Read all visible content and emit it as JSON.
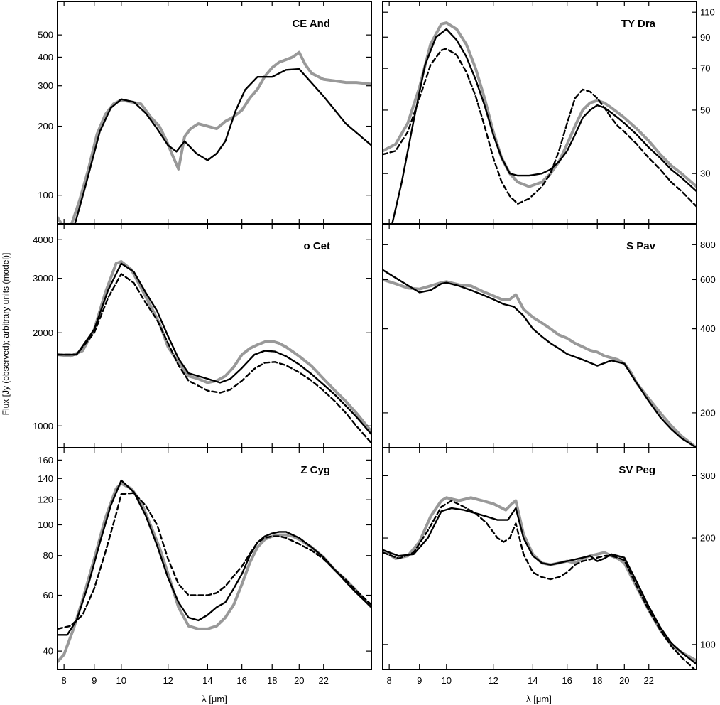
{
  "axis": {
    "ylabel": "Flux [Jy (observed); arbitrary units (model)]",
    "xlabel": "λ [μm]",
    "xscale": "log",
    "xlim": [
      7.8,
      26.5
    ],
    "xticks": [
      8,
      9,
      10,
      12,
      14,
      16,
      18,
      20,
      22
    ],
    "xtick_labels": [
      "8",
      "9",
      "10",
      "12",
      "14",
      "16",
      "18",
      "20",
      "22"
    ]
  },
  "series_styles": {
    "observed": {
      "color": "#999999"
    },
    "model_1": {
      "color": "#000000",
      "dash": "solid"
    },
    "model_2": {
      "color": "#000000",
      "dash": "dashed"
    }
  },
  "chart_data": [
    {
      "type": "line",
      "title": "CE And",
      "yscale": "log",
      "ylim": [
        75,
        700
      ],
      "ytick_labels": [
        "100",
        "200",
        "300",
        "400",
        "500"
      ],
      "yticks": [
        100,
        200,
        300,
        400,
        500
      ],
      "observed": {
        "x": [
          7.8,
          8.0,
          8.2,
          8.5,
          8.8,
          9.1,
          9.4,
          9.7,
          10.0,
          10.4,
          10.8,
          11.2,
          11.6,
          11.9,
          12.2,
          12.5,
          12.8,
          13.1,
          13.5,
          14.0,
          14.5,
          15.0,
          15.5,
          16.0,
          16.5,
          17.0,
          17.5,
          18.0,
          18.5,
          19.0,
          19.5,
          20.0,
          20.5,
          21.0,
          22.0,
          23.0,
          24.0,
          25.0,
          26.5
        ],
        "y": [
          80,
          72,
          72,
          95,
          130,
          185,
          225,
          250,
          260,
          255,
          250,
          220,
          200,
          175,
          150,
          130,
          180,
          195,
          205,
          200,
          195,
          210,
          220,
          235,
          265,
          290,
          330,
          360,
          380,
          390,
          400,
          420,
          370,
          340,
          320,
          315,
          310,
          310,
          305
        ]
      },
      "model_1": {
        "x": [
          8.35,
          8.7,
          9.2,
          9.6,
          10.0,
          10.5,
          11.0,
          11.5,
          12.0,
          12.4,
          12.8,
          13.4,
          14.0,
          14.5,
          15.0,
          15.6,
          16.2,
          17.0,
          18.0,
          19.0,
          20.0,
          22.0,
          24.0,
          26.5
        ],
        "y": [
          75,
          110,
          190,
          240,
          262,
          255,
          228,
          195,
          165,
          155,
          172,
          152,
          142,
          152,
          172,
          232,
          288,
          328,
          328,
          352,
          355,
          270,
          205,
          165
        ]
      }
    },
    {
      "type": "line",
      "title": "TY Dra",
      "yscale": "log",
      "ylim": [
        20,
        120
      ],
      "ytick_labels": [
        "30",
        "50",
        "70",
        "90",
        "110"
      ],
      "yticks": [
        30,
        50,
        70,
        90,
        110
      ],
      "observed": {
        "x": [
          7.8,
          8.2,
          8.6,
          9.0,
          9.4,
          9.8,
          10.0,
          10.4,
          10.8,
          11.2,
          11.6,
          12.0,
          12.4,
          12.8,
          13.2,
          13.8,
          14.5,
          15.0,
          15.5,
          16.0,
          16.5,
          17.0,
          17.5,
          18.0,
          18.5,
          19.0,
          19.5,
          20.0,
          21.0,
          22.0,
          23.0,
          24.0,
          25.0,
          26.5
        ],
        "y": [
          36,
          38,
          45,
          60,
          85,
          100,
          101,
          96,
          85,
          70,
          55,
          42,
          34,
          30,
          28,
          27,
          28,
          30,
          33,
          38,
          44,
          50,
          53,
          54,
          53,
          51,
          49,
          47,
          43,
          39,
          35,
          32,
          30,
          27
        ]
      },
      "model_1": {
        "x": [
          8.0,
          8.4,
          8.8,
          9.2,
          9.6,
          10.0,
          10.4,
          10.8,
          11.2,
          11.6,
          12.0,
          12.4,
          12.8,
          13.2,
          13.8,
          14.5,
          15.0,
          15.5,
          16.0,
          16.5,
          17.0,
          17.5,
          18.0,
          18.5,
          19.0,
          19.5,
          20.0,
          21.0,
          22.0,
          23.0,
          24.0,
          25.0,
          26.5
        ],
        "y": [
          18,
          28,
          46,
          72,
          90,
          96,
          88,
          77,
          64,
          52,
          41,
          34,
          30,
          29.5,
          29.5,
          30,
          31,
          33,
          36,
          41,
          47,
          50,
          52,
          51,
          49,
          47,
          45,
          41,
          37,
          34,
          31,
          29,
          26
        ]
      },
      "model_2": {
        "x": [
          7.8,
          8.2,
          8.6,
          9.0,
          9.4,
          9.8,
          10.0,
          10.4,
          10.8,
          11.2,
          11.6,
          12.0,
          12.4,
          12.8,
          13.2,
          13.8,
          14.5,
          15.0,
          15.5,
          16.0,
          16.5,
          17.0,
          17.5,
          18.0,
          18.5,
          19.0,
          19.5,
          20.0,
          21.0,
          22.0,
          23.0,
          24.0,
          25.0,
          26.5
        ],
        "y": [
          35,
          36,
          42,
          55,
          72,
          81,
          82,
          78,
          68,
          56,
          44,
          34,
          28,
          25,
          23.5,
          24.5,
          27,
          30,
          36,
          45,
          55,
          59,
          58,
          55,
          51,
          47,
          44,
          42,
          38,
          34,
          31,
          28,
          26,
          23
        ]
      }
    },
    {
      "type": "line",
      "title": "o Cet",
      "yscale": "log",
      "ylim": [
        850,
        4500
      ],
      "ytick_labels": [
        "1000",
        "2000",
        "3000",
        "4000"
      ],
      "yticks": [
        1000,
        2000,
        3000,
        4000
      ],
      "observed": {
        "x": [
          7.8,
          8.2,
          8.6,
          9.0,
          9.4,
          9.8,
          10.0,
          10.4,
          10.8,
          11.2,
          11.6,
          12.0,
          12.5,
          13.0,
          13.5,
          14.0,
          14.5,
          15.0,
          15.5,
          16.0,
          16.5,
          17.0,
          17.5,
          18.0,
          18.5,
          19.0,
          19.5,
          20.0,
          21.0,
          22.0,
          23.0,
          24.0,
          25.0,
          26.5
        ],
        "y": [
          1700,
          1680,
          1750,
          2050,
          2700,
          3350,
          3400,
          3200,
          2800,
          2450,
          2150,
          1800,
          1600,
          1450,
          1420,
          1380,
          1400,
          1450,
          1550,
          1700,
          1780,
          1830,
          1870,
          1880,
          1850,
          1800,
          1740,
          1680,
          1560,
          1420,
          1300,
          1200,
          1100,
          960
        ]
      },
      "model_1": {
        "x": [
          7.8,
          8.4,
          9.0,
          9.5,
          10.0,
          10.5,
          11.0,
          11.5,
          12.0,
          12.5,
          13.0,
          14.0,
          14.7,
          15.3,
          16.0,
          16.8,
          17.5,
          18.2,
          19.0,
          20.0,
          21.0,
          22.0,
          23.0,
          24.0,
          25.0,
          26.5
        ],
        "y": [
          1700,
          1700,
          2050,
          2750,
          3350,
          3150,
          2700,
          2350,
          1950,
          1650,
          1480,
          1420,
          1380,
          1420,
          1540,
          1700,
          1750,
          1740,
          1680,
          1580,
          1470,
          1360,
          1260,
          1160,
          1070,
          940
        ]
      },
      "model_2": {
        "x": [
          7.8,
          8.4,
          9.0,
          9.5,
          10.0,
          10.5,
          11.0,
          11.5,
          12.0,
          12.5,
          13.0,
          14.0,
          14.7,
          15.3,
          16.0,
          16.8,
          17.5,
          18.2,
          19.0,
          20.0,
          21.0,
          22.0,
          23.0,
          24.0,
          25.0,
          26.5
        ],
        "y": [
          1700,
          1700,
          2000,
          2600,
          3100,
          2900,
          2500,
          2200,
          1850,
          1570,
          1400,
          1300,
          1280,
          1310,
          1400,
          1530,
          1600,
          1610,
          1570,
          1490,
          1400,
          1300,
          1200,
          1100,
          1000,
          880
        ]
      }
    },
    {
      "type": "line",
      "title": "S Pav",
      "yscale": "log",
      "ylim": [
        150,
        950
      ],
      "ytick_labels": [
        "200",
        "400",
        "600",
        "800"
      ],
      "yticks": [
        200,
        400,
        600,
        800
      ],
      "observed": {
        "x": [
          7.8,
          8.2,
          8.6,
          9.0,
          9.4,
          9.8,
          10.0,
          10.5,
          11.0,
          11.5,
          12.0,
          12.4,
          12.8,
          13.1,
          13.5,
          14.0,
          14.5,
          15.0,
          15.5,
          16.0,
          16.5,
          17.0,
          17.5,
          18.0,
          18.5,
          19.0,
          19.5,
          20.0,
          20.5,
          21.0,
          22.0,
          23.0,
          24.0,
          25.0,
          26.5
        ],
        "y": [
          600,
          580,
          560,
          555,
          570,
          585,
          590,
          575,
          570,
          545,
          525,
          510,
          510,
          530,
          470,
          440,
          420,
          400,
          380,
          370,
          355,
          345,
          335,
          330,
          320,
          315,
          310,
          300,
          280,
          255,
          225,
          200,
          180,
          165,
          150
        ]
      },
      "model_1": {
        "x": [
          7.8,
          8.4,
          9.0,
          9.4,
          9.8,
          10.0,
          10.5,
          11.0,
          11.5,
          12.0,
          12.5,
          13.0,
          13.5,
          14.0,
          14.5,
          15.0,
          15.5,
          16.0,
          17.0,
          18.0,
          19.0,
          20.0,
          21.0,
          22.0,
          23.0,
          24.0,
          25.0,
          26.5
        ],
        "y": [
          650,
          590,
          540,
          550,
          580,
          585,
          570,
          550,
          530,
          510,
          490,
          480,
          445,
          400,
          375,
          355,
          340,
          325,
          310,
          295,
          308,
          300,
          255,
          220,
          193,
          175,
          162,
          150
        ]
      }
    },
    {
      "type": "line",
      "title": "Z Cyg",
      "yscale": "log",
      "ylim": [
        35,
        175
      ],
      "ytick_labels": [
        "40",
        "60",
        "80",
        "100",
        "120",
        "140",
        "160"
      ],
      "yticks": [
        40,
        60,
        80,
        100,
        120,
        140,
        160
      ],
      "observed": {
        "x": [
          7.8,
          8.0,
          8.3,
          8.6,
          9.0,
          9.4,
          9.8,
          10.0,
          10.4,
          10.8,
          11.2,
          11.6,
          12.0,
          12.5,
          13.0,
          13.5,
          14.0,
          14.5,
          15.0,
          15.5,
          16.0,
          16.5,
          17.0,
          17.5,
          18.0,
          18.5,
          19.0,
          19.5,
          20.0,
          21.0,
          22.0,
          23.0,
          24.0,
          25.0,
          26.5
        ],
        "y": [
          37,
          39,
          47,
          58,
          78,
          105,
          130,
          135,
          130,
          118,
          100,
          85,
          70,
          55,
          48,
          47,
          47,
          48,
          51,
          56,
          65,
          76,
          85,
          90,
          92,
          93,
          93,
          92,
          90,
          85,
          79,
          72,
          67,
          62,
          55
        ]
      },
      "model_1": {
        "x": [
          7.8,
          8.1,
          8.4,
          8.8,
          9.2,
          9.6,
          10.0,
          10.5,
          11.0,
          11.5,
          12.0,
          12.5,
          13.0,
          13.5,
          14.0,
          14.5,
          15.0,
          15.5,
          16.0,
          16.5,
          17.0,
          17.5,
          18.0,
          18.5,
          19.0,
          19.5,
          20.0,
          21.0,
          22.0,
          23.0,
          24.0,
          25.0,
          26.5
        ],
        "y": [
          45,
          45,
          50,
          65,
          88,
          115,
          138,
          127,
          107,
          86,
          68,
          57,
          51,
          50,
          52,
          55,
          57,
          63,
          70,
          80,
          88,
          92,
          94,
          95,
          95,
          93,
          91,
          85,
          79,
          72,
          66,
          61,
          55
        ]
      },
      "model_2": {
        "x": [
          7.8,
          8.2,
          8.6,
          9.0,
          9.4,
          9.8,
          10.0,
          10.5,
          11.0,
          11.5,
          12.0,
          12.5,
          13.0,
          13.5,
          14.0,
          14.5,
          15.0,
          15.5,
          16.0,
          16.5,
          17.0,
          17.5,
          18.0,
          18.5,
          19.0,
          19.5,
          20.0,
          21.0,
          22.0,
          23.0,
          24.0,
          25.0,
          26.5
        ],
        "y": [
          47,
          48,
          52,
          63,
          82,
          108,
          125,
          126,
          115,
          100,
          78,
          65,
          60,
          60,
          60,
          61,
          64,
          69,
          74,
          81,
          88,
          91,
          92,
          92,
          91,
          89,
          87,
          83,
          78,
          72,
          67,
          62,
          56
        ]
      }
    },
    {
      "type": "line",
      "title": "SV Peg",
      "yscale": "log",
      "ylim": [
        85,
        360
      ],
      "ytick_labels": [
        "100",
        "200",
        "300"
      ],
      "yticks": [
        100,
        200,
        300
      ],
      "observed": {
        "x": [
          7.8,
          8.2,
          8.6,
          9.0,
          9.4,
          9.8,
          10.0,
          10.5,
          11.0,
          11.5,
          12.0,
          12.3,
          12.6,
          12.9,
          13.1,
          13.5,
          14.0,
          14.5,
          15.0,
          15.5,
          16.0,
          16.5,
          17.0,
          17.5,
          18.0,
          18.5,
          19.0,
          19.5,
          20.0,
          21.0,
          22.0,
          23.0,
          24.0,
          25.0,
          26.5
        ],
        "y": [
          185,
          175,
          178,
          195,
          230,
          255,
          260,
          255,
          260,
          255,
          250,
          245,
          240,
          250,
          255,
          205,
          180,
          170,
          168,
          170,
          172,
          170,
          175,
          178,
          180,
          182,
          178,
          175,
          170,
          145,
          125,
          110,
          100,
          95,
          90
        ]
      },
      "model_1": {
        "x": [
          7.8,
          8.3,
          8.8,
          9.3,
          9.8,
          10.2,
          10.7,
          11.2,
          11.7,
          12.2,
          12.7,
          13.1,
          13.5,
          14.0,
          14.5,
          15.0,
          15.5,
          16.0,
          16.5,
          17.0,
          17.5,
          18.0,
          18.5,
          19.0,
          19.5,
          20.0,
          21.0,
          22.0,
          23.0,
          24.0,
          25.0,
          26.5
        ],
        "y": [
          185,
          178,
          180,
          200,
          238,
          243,
          240,
          235,
          230,
          225,
          225,
          243,
          200,
          178,
          170,
          168,
          170,
          172,
          174,
          176,
          178,
          172,
          175,
          180,
          178,
          176,
          150,
          128,
          112,
          101,
          95,
          88
        ]
      },
      "model_2": {
        "x": [
          7.8,
          8.3,
          8.8,
          9.3,
          9.8,
          10.2,
          10.7,
          11.2,
          11.7,
          12.2,
          12.5,
          12.8,
          13.1,
          13.5,
          14.0,
          14.5,
          15.0,
          15.5,
          16.0,
          16.5,
          17.0,
          17.5,
          18.0,
          18.5,
          19.0,
          19.5,
          20.0,
          21.0,
          22.0,
          23.0,
          24.0,
          25.0,
          26.5
        ],
        "y": [
          182,
          175,
          182,
          210,
          245,
          255,
          245,
          235,
          220,
          200,
          195,
          200,
          220,
          180,
          160,
          155,
          153,
          155,
          160,
          168,
          172,
          174,
          176,
          178,
          178,
          176,
          173,
          146,
          125,
          110,
          99,
          92,
          84
        ]
      }
    }
  ]
}
